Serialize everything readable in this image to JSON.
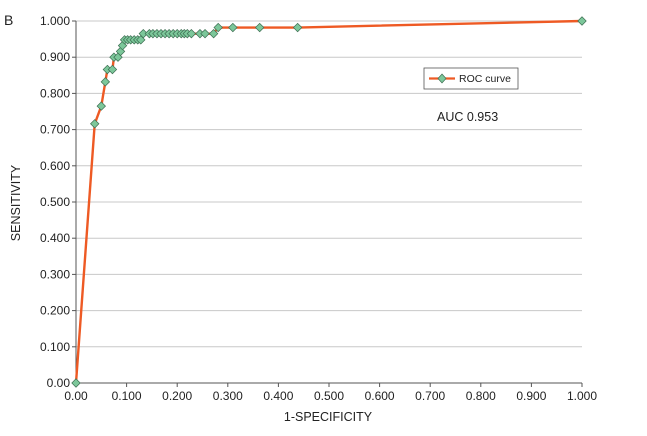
{
  "panel_label": "B",
  "chart_data": {
    "type": "line",
    "xlabel": "1-SPECIFICITY",
    "ylabel": "SENSITIVITY",
    "xlim": [
      0,
      1
    ],
    "ylim": [
      0,
      1
    ],
    "x_ticks": [
      "0.00",
      "0.100",
      "0.200",
      "0.300",
      "0.400",
      "0.500",
      "0.600",
      "0.700",
      "0.800",
      "0.900",
      "1.000"
    ],
    "y_ticks": [
      "0.00",
      "0.100",
      "0.200",
      "0.300",
      "0.400",
      "0.500",
      "0.600",
      "0.700",
      "0.800",
      "0.900",
      "1.000"
    ],
    "grid": "horizontal",
    "legend_position": "top-right",
    "annotation": "AUC 0.953",
    "series": [
      {
        "name": "ROC curve",
        "line_color": "#ee5a24",
        "marker_color": "#7cc79a",
        "marker": "diamond",
        "points": [
          [
            0.0,
            0.0
          ],
          [
            0.037,
            0.716
          ],
          [
            0.05,
            0.765
          ],
          [
            0.058,
            0.832
          ],
          [
            0.062,
            0.866
          ],
          [
            0.072,
            0.866
          ],
          [
            0.075,
            0.9
          ],
          [
            0.083,
            0.9
          ],
          [
            0.088,
            0.916
          ],
          [
            0.092,
            0.932
          ],
          [
            0.096,
            0.948
          ],
          [
            0.102,
            0.948
          ],
          [
            0.108,
            0.948
          ],
          [
            0.115,
            0.948
          ],
          [
            0.122,
            0.948
          ],
          [
            0.128,
            0.948
          ],
          [
            0.133,
            0.965
          ],
          [
            0.145,
            0.965
          ],
          [
            0.152,
            0.965
          ],
          [
            0.16,
            0.965
          ],
          [
            0.168,
            0.965
          ],
          [
            0.176,
            0.965
          ],
          [
            0.184,
            0.965
          ],
          [
            0.192,
            0.965
          ],
          [
            0.2,
            0.965
          ],
          [
            0.208,
            0.965
          ],
          [
            0.214,
            0.965
          ],
          [
            0.22,
            0.965
          ],
          [
            0.228,
            0.965
          ],
          [
            0.245,
            0.965
          ],
          [
            0.255,
            0.965
          ],
          [
            0.272,
            0.965
          ],
          [
            0.281,
            0.982
          ],
          [
            0.31,
            0.982
          ],
          [
            0.363,
            0.982
          ],
          [
            0.438,
            0.982
          ],
          [
            1.0,
            1.0
          ]
        ]
      }
    ]
  }
}
